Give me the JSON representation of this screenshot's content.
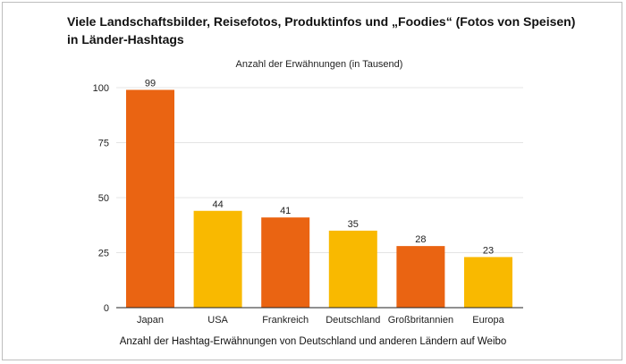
{
  "title_lines": [
    "Viele Landschaftsbilder, Reisefotos, Produktinfos und „Foodies“ (Fotos von Speisen)",
    "in Länder-Hashtags"
  ],
  "caption": "Anzahl der Hashtag-Erwähnungen von Deutschland und anderen Ländern auf Weibo",
  "colors": {
    "orange": "#ea6412",
    "yellow": "#f9b900",
    "grid": "#e4e4e4",
    "axis": "#222222"
  },
  "chart_data": {
    "type": "bar",
    "subtitle": "Anzahl der Erwähnungen (in Tausend)",
    "categories": [
      "Japan",
      "USA",
      "Frankreich",
      "Deutschland",
      "Großbritannien",
      "Europa"
    ],
    "values": [
      99,
      44,
      41,
      35,
      28,
      23
    ],
    "bar_colors": [
      "#ea6412",
      "#f9b900",
      "#ea6412",
      "#f9b900",
      "#ea6412",
      "#f9b900"
    ],
    "yticks": [
      0,
      25,
      50,
      75,
      100
    ],
    "ylim": [
      0,
      100
    ],
    "grid": true,
    "data_labels": true
  }
}
